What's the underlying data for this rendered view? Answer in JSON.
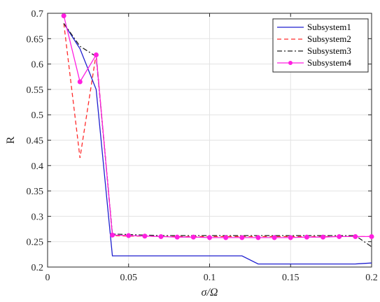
{
  "chart_data": {
    "type": "line",
    "title": "",
    "xlabel": "σ/Ω",
    "ylabel": "R",
    "xlim": [
      0,
      0.2
    ],
    "ylim": [
      0.2,
      0.7
    ],
    "xticks": [
      0,
      0.05,
      0.1,
      0.15,
      0.2
    ],
    "xtick_labels": [
      "0",
      "0.05",
      "0.1",
      "0.15",
      "0.2"
    ],
    "yticks": [
      0.2,
      0.25,
      0.3,
      0.35,
      0.4,
      0.45,
      0.5,
      0.55,
      0.6,
      0.65,
      0.7
    ],
    "ytick_labels": [
      "0.2",
      "0.25",
      "0.3",
      "0.35",
      "0.4",
      "0.45",
      "0.5",
      "0.55",
      "0.6",
      "0.65",
      "0.7"
    ],
    "grid": true,
    "legend_position": "top-right",
    "series": [
      {
        "name": "Subsystem1",
        "color": "#1f1fcf",
        "style": "solid",
        "x": [
          0.01,
          0.02,
          0.03,
          0.04,
          0.05,
          0.06,
          0.07,
          0.08,
          0.09,
          0.1,
          0.11,
          0.12,
          0.13,
          0.14,
          0.15,
          0.16,
          0.17,
          0.18,
          0.19,
          0.2
        ],
        "y": [
          0.68,
          0.63,
          0.55,
          0.222,
          0.222,
          0.222,
          0.222,
          0.222,
          0.222,
          0.222,
          0.222,
          0.222,
          0.206,
          0.206,
          0.206,
          0.206,
          0.206,
          0.206,
          0.206,
          0.208
        ]
      },
      {
        "name": "Subsystem2",
        "color": "#ff2a2a",
        "style": "dashed",
        "x": [
          0.01,
          0.02,
          0.03,
          0.04,
          0.05,
          0.06,
          0.07,
          0.08,
          0.09,
          0.1,
          0.11,
          0.12,
          0.13,
          0.14,
          0.15,
          0.16,
          0.17,
          0.18,
          0.19,
          0.2
        ],
        "y": [
          0.68,
          0.415,
          0.62,
          0.262,
          0.261,
          0.261,
          0.26,
          0.26,
          0.26,
          0.26,
          0.26,
          0.26,
          0.26,
          0.26,
          0.26,
          0.26,
          0.26,
          0.26,
          0.26,
          0.26
        ]
      },
      {
        "name": "Subsystem3",
        "color": "#222222",
        "style": "dashdot",
        "x": [
          0.01,
          0.02,
          0.03,
          0.04,
          0.05,
          0.06,
          0.07,
          0.08,
          0.09,
          0.1,
          0.11,
          0.12,
          0.13,
          0.14,
          0.15,
          0.16,
          0.17,
          0.18,
          0.19,
          0.2
        ],
        "y": [
          0.68,
          0.635,
          0.615,
          0.265,
          0.264,
          0.263,
          0.262,
          0.262,
          0.262,
          0.262,
          0.262,
          0.262,
          0.262,
          0.262,
          0.262,
          0.262,
          0.262,
          0.262,
          0.262,
          0.24
        ]
      },
      {
        "name": "Subsystem4",
        "color": "#ff1fe0",
        "style": "solid-marker",
        "x": [
          0.01,
          0.02,
          0.03,
          0.04,
          0.05,
          0.06,
          0.07,
          0.08,
          0.09,
          0.1,
          0.11,
          0.12,
          0.13,
          0.14,
          0.15,
          0.16,
          0.17,
          0.18,
          0.19,
          0.2
        ],
        "y": [
          0.695,
          0.565,
          0.618,
          0.263,
          0.262,
          0.261,
          0.26,
          0.259,
          0.259,
          0.258,
          0.258,
          0.258,
          0.258,
          0.258,
          0.258,
          0.259,
          0.259,
          0.26,
          0.26,
          0.26
        ]
      }
    ]
  }
}
